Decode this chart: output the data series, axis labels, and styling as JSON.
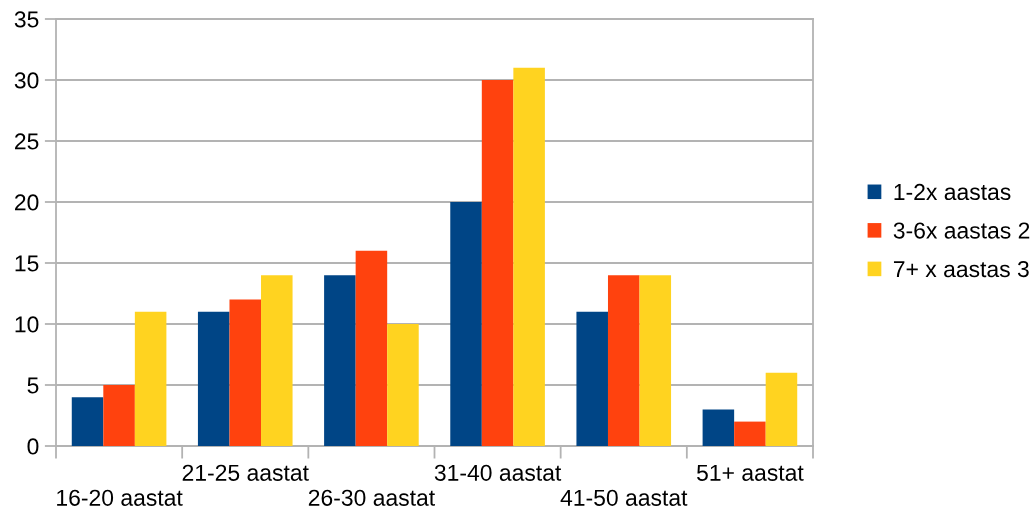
{
  "chart_data": {
    "type": "bar",
    "categories": [
      "16-20 aastat",
      "21-25 aastat",
      "26-30 aastat",
      "31-40 aastat",
      "41-50 aastat",
      "51+ aastat"
    ],
    "series": [
      {
        "name": "1-2x aastas",
        "color": "#004586",
        "values": [
          4,
          11,
          14,
          20,
          11,
          3
        ]
      },
      {
        "name": "3-6x aastas 2",
        "color": "#ff420e",
        "values": [
          5,
          12,
          16,
          30,
          14,
          2
        ]
      },
      {
        "name": "7+ x aastas 3",
        "color": "#ffd320",
        "values": [
          11,
          14,
          10,
          31,
          14,
          6
        ]
      }
    ],
    "ylim": [
      0,
      35
    ],
    "yticks": [
      0,
      5,
      10,
      15,
      20,
      25,
      30,
      35
    ],
    "grid": "y",
    "legend": "right"
  }
}
